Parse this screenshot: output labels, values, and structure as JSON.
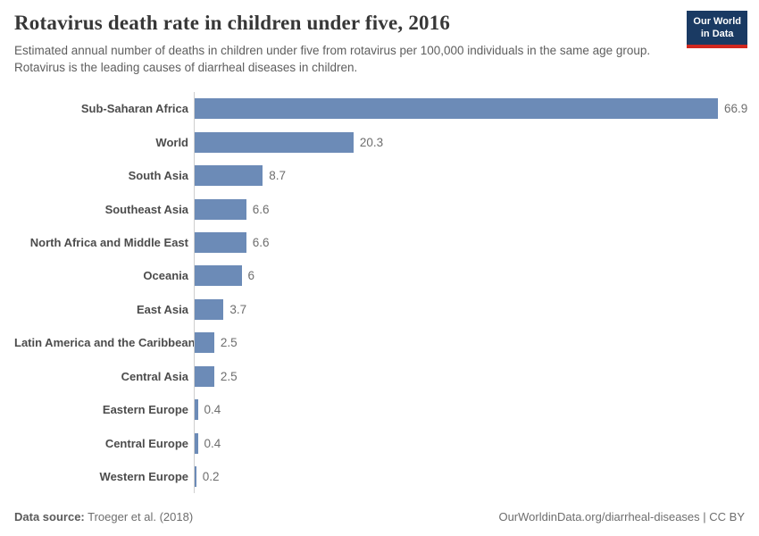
{
  "header": {
    "title": "Rotavirus death rate in children under five, 2016",
    "subtitle": "Estimated annual number of deaths in children under five from rotavirus per 100,000 individuals in the same age group. Rotavirus is the leading causes of diarrheal diseases in children.",
    "logo": {
      "line1": "Our World",
      "line2": "in Data"
    }
  },
  "chart_data": {
    "type": "bar",
    "orientation": "horizontal",
    "title": "Rotavirus death rate in children under five, 2016",
    "categories": [
      "Sub-Saharan Africa",
      "World",
      "South Asia",
      "Southeast Asia",
      "North Africa and Middle East",
      "Oceania",
      "East Asia",
      "Latin America and the Caribbean",
      "Central Asia",
      "Eastern Europe",
      "Central Europe",
      "Western Europe"
    ],
    "values": [
      66.9,
      20.3,
      8.7,
      6.6,
      6.6,
      6,
      3.7,
      2.5,
      2.5,
      0.4,
      0.4,
      0.2
    ],
    "value_labels": [
      "66.9",
      "20.3",
      "8.7",
      "6.6",
      "6.6",
      "6",
      "3.7",
      "2.5",
      "2.5",
      "0.4",
      "0.4",
      "0.2"
    ],
    "xlabel": "",
    "ylabel": "",
    "xlim": [
      0,
      66.9
    ],
    "grid": false,
    "legend": false,
    "bar_color": "#6c8bb7",
    "axis_color": "#cfcfcf"
  },
  "footer": {
    "source_label": "Data source:",
    "source_value": " Troeger et al. (2018)",
    "right_text": "OurWorldinData.org/diarrheal-diseases | CC BY"
  },
  "colors": {
    "logo_navy": "#1a3a63",
    "logo_red": "#d1271f",
    "bar": "#6c8bb7",
    "title_text": "#373737"
  }
}
